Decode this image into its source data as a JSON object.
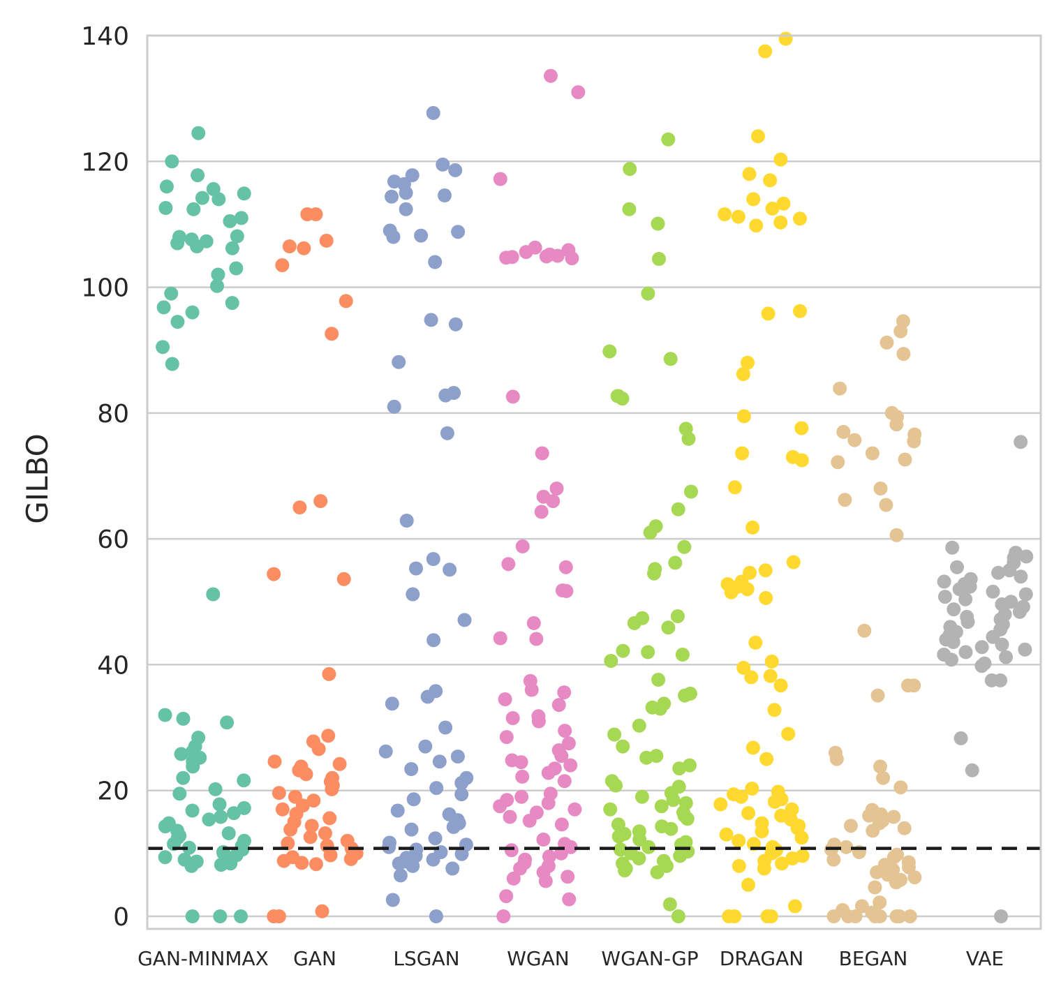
{
  "chart_data": {
    "type": "scatter",
    "subtype": "strip",
    "title": "",
    "xlabel": "",
    "ylabel": "GILBO",
    "ylim": [
      -2,
      140
    ],
    "yticks": [
      0,
      20,
      40,
      60,
      80,
      100,
      120,
      140
    ],
    "categories": [
      "GAN-MINMAX",
      "GAN",
      "LSGAN",
      "WGAN",
      "WGAN-GP",
      "DRAGAN",
      "BEGAN",
      "VAE"
    ],
    "reference_line": {
      "y": 10.8,
      "style": "dashed",
      "color": "#1a1a1a"
    },
    "grid": "horizontal",
    "series": [
      {
        "name": "GAN-MINMAX",
        "color": "#66c2a5",
        "values": [
          124.5,
          120,
          117.8,
          116,
          115.6,
          114.9,
          114.2,
          114,
          112.6,
          112.4,
          111,
          110.5,
          108.1,
          108,
          107.6,
          107.3,
          107,
          106.5,
          106.2,
          103,
          102,
          100.2,
          99,
          97.5,
          96.8,
          96,
          94.5,
          90.5,
          87.8,
          51.2,
          32,
          31.4,
          30.8,
          28.4,
          27,
          26.2,
          25.8,
          25.2,
          24.6,
          23.8,
          22,
          21.6,
          20.2,
          19.5,
          17.8,
          17.2,
          16.8,
          16.4,
          15.8,
          15.4,
          14.8,
          14.3,
          13.6,
          13.2,
          12.8,
          12.5,
          12,
          11.5,
          11.2,
          10.9,
          10.6,
          10.2,
          10,
          9.7,
          9.4,
          9,
          8.7,
          8.4,
          8.2,
          8,
          0,
          0,
          0
        ]
      },
      {
        "name": "GAN",
        "color": "#fc8d62",
        "values": [
          111.6,
          111.6,
          107.4,
          106.5,
          106.2,
          103.5,
          97.8,
          92.6,
          66,
          65,
          54.4,
          53.6,
          38.5,
          28.7,
          27.8,
          26.6,
          24.6,
          24.2,
          23.8,
          23.2,
          22.6,
          22,
          21.4,
          20.8,
          20.2,
          19.6,
          19,
          18.4,
          17.6,
          17,
          16.3,
          15.6,
          15,
          14.4,
          13.8,
          13.2,
          12.6,
          12,
          11.6,
          11.2,
          10.8,
          10.4,
          10,
          9.7,
          9.4,
          9.1,
          8.8,
          8.5,
          8.3,
          0.8,
          0,
          0
        ]
      },
      {
        "name": "LSGAN",
        "color": "#8da0cb",
        "values": [
          127.7,
          119.5,
          118.6,
          117.8,
          116.8,
          116.4,
          115,
          114.6,
          114.4,
          112.4,
          109,
          108.8,
          108.2,
          108,
          104,
          94.8,
          94.1,
          88.1,
          83.2,
          82.8,
          81,
          76.8,
          62.9,
          56.8,
          55.3,
          55.1,
          51.2,
          47.1,
          43.9,
          35.8,
          34.9,
          33.8,
          30,
          27,
          26.2,
          25.4,
          24.6,
          23.4,
          22,
          21.2,
          20.4,
          19.4,
          18.6,
          16.8,
          16.2,
          15.3,
          14.8,
          14.2,
          13.8,
          12.4,
          11.7,
          11.4,
          11,
          10.6,
          10.2,
          9.9,
          9.6,
          9.3,
          9,
          8.7,
          8.4,
          8,
          7.6,
          6.5,
          2.6,
          0
        ]
      },
      {
        "name": "WGAN",
        "color": "#e78ac3",
        "values": [
          133.6,
          131,
          117.2,
          106.3,
          105.9,
          105.6,
          105.2,
          105,
          104.9,
          104.8,
          104.7,
          104.6,
          82.6,
          73.6,
          68,
          66.7,
          66,
          64.3,
          58.8,
          56,
          55.5,
          51.8,
          51.7,
          46.6,
          44.2,
          44.1,
          37.4,
          36,
          35.6,
          34.5,
          33.6,
          31.8,
          31.5,
          31,
          29.5,
          28.5,
          27.5,
          26.4,
          25.5,
          24.8,
          24.5,
          24,
          23.5,
          22.8,
          22.2,
          21.5,
          19.5,
          19,
          18.5,
          18,
          17.5,
          17,
          16.5,
          15.8,
          15.2,
          14.6,
          12.2,
          11.5,
          11,
          10.5,
          10,
          9.5,
          9,
          8.5,
          8,
          7.6,
          7,
          6.3,
          6,
          5.6,
          3.2,
          2.7,
          0
        ]
      },
      {
        "name": "WGAN-GP",
        "color": "#a6d854",
        "values": [
          123.5,
          118.8,
          112.4,
          110.1,
          104.5,
          99,
          89.8,
          88.6,
          82.7,
          82.7,
          82.3,
          77.5,
          75.9,
          67.5,
          64.7,
          62,
          61,
          58.7,
          56.2,
          55.2,
          54.5,
          47.7,
          47.4,
          46.6,
          45.9,
          42.2,
          42,
          41.6,
          40.6,
          37.6,
          35.4,
          35.1,
          33.8,
          33.2,
          33,
          30.3,
          28.9,
          27,
          25.5,
          25.2,
          24,
          23.5,
          21.5,
          20.8,
          20.6,
          19.6,
          19,
          18.5,
          18,
          17.5,
          17,
          16.5,
          16,
          15.5,
          14.6,
          14.3,
          13.9,
          13.5,
          13.1,
          12.7,
          12.2,
          11.8,
          11.4,
          11,
          10.6,
          10.3,
          10,
          9.6,
          9.2,
          8.8,
          8.4,
          8,
          7.6,
          7.3,
          7,
          1.9,
          0
        ]
      },
      {
        "name": "DRAGAN",
        "color": "#ffd92f",
        "values": [
          139.5,
          137.5,
          124,
          120.3,
          118,
          117,
          114,
          113.3,
          112.5,
          111.6,
          111.2,
          110.9,
          110.3,
          109.8,
          96.2,
          95.8,
          88,
          86.2,
          79.5,
          77.6,
          73.6,
          73,
          72.5,
          68.2,
          61.8,
          56.3,
          55,
          54.6,
          53.2,
          52.8,
          52.4,
          52,
          51.5,
          50.6,
          43.5,
          40.5,
          39.5,
          38.2,
          38,
          36.7,
          32.8,
          29,
          26.8,
          25,
          20.3,
          19.8,
          19.4,
          19,
          18.6,
          18.2,
          17.8,
          17,
          16.4,
          16,
          15.4,
          14.8,
          14.4,
          14,
          13.5,
          13,
          12.5,
          12,
          11.5,
          11,
          10.5,
          10,
          9.6,
          9.2,
          8.8,
          8.4,
          8,
          7.6,
          5,
          1.6,
          0,
          0,
          0,
          0
        ]
      },
      {
        "name": "BEGAN",
        "color": "#e5c494",
        "values": [
          94.6,
          93,
          91.2,
          89.4,
          83.9,
          80,
          79.4,
          78.2,
          77,
          76.6,
          75.7,
          75.5,
          73.6,
          72.6,
          72.2,
          68,
          66.2,
          65.4,
          60.6,
          45.4,
          36.7,
          36.7,
          35.1,
          26,
          25,
          23.8,
          22,
          20.5,
          16.9,
          16.2,
          16,
          15.8,
          15.2,
          14.8,
          14.4,
          14,
          13.6,
          11.4,
          11,
          10.6,
          10.2,
          9.8,
          9.4,
          9,
          8.6,
          8.2,
          7.8,
          7.4,
          7,
          6.6,
          6.2,
          5.8,
          5.4,
          4.6,
          2.2,
          1.6,
          1,
          0.6,
          0,
          0,
          0,
          0,
          0,
          0,
          0,
          0
        ]
      },
      {
        "name": "VAE",
        "color": "#b3b3b3",
        "values": [
          75.4,
          58.6,
          57.8,
          57.2,
          57,
          56.2,
          55.5,
          55,
          54.6,
          54,
          53.6,
          53.2,
          52.8,
          52.4,
          52,
          51.6,
          51.2,
          50.8,
          50.4,
          50,
          49.6,
          49.2,
          48.8,
          48.4,
          48,
          47.6,
          47.2,
          46.8,
          46.4,
          46,
          45.6,
          45.2,
          44.8,
          44.4,
          44,
          43.6,
          43.2,
          42.8,
          42.4,
          42,
          41.6,
          41.2,
          40.8,
          40.2,
          39.8,
          37.5,
          37.5,
          28.3,
          23.2,
          0
        ]
      }
    ]
  }
}
